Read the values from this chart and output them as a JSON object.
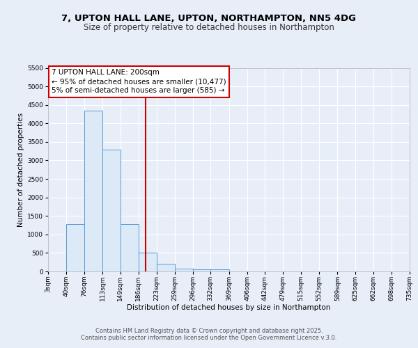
{
  "title": "7, UPTON HALL LANE, UPTON, NORTHAMPTON, NN5 4DG",
  "subtitle": "Size of property relative to detached houses in Northampton",
  "xlabel": "Distribution of detached houses by size in Northampton",
  "ylabel": "Number of detached properties",
  "bin_edges": [
    3,
    40,
    76,
    113,
    149,
    186,
    223,
    259,
    296,
    332,
    369,
    406,
    442,
    479,
    515,
    552,
    589,
    625,
    662,
    698,
    735
  ],
  "bar_heights": [
    0,
    1270,
    4350,
    3300,
    1280,
    510,
    210,
    80,
    55,
    55,
    0,
    0,
    0,
    0,
    0,
    0,
    0,
    0,
    0,
    0
  ],
  "bar_facecolor": "#dce9f7",
  "bar_edgecolor": "#5b9bd5",
  "vline_x": 200,
  "vline_color": "#cc0000",
  "ylim": [
    0,
    5500
  ],
  "yticks": [
    0,
    500,
    1000,
    1500,
    2000,
    2500,
    3000,
    3500,
    4000,
    4500,
    5000,
    5500
  ],
  "xtick_labels": [
    "3sqm",
    "40sqm",
    "76sqm",
    "113sqm",
    "149sqm",
    "186sqm",
    "223sqm",
    "259sqm",
    "296sqm",
    "332sqm",
    "369sqm",
    "406sqm",
    "442sqm",
    "479sqm",
    "515sqm",
    "552sqm",
    "589sqm",
    "625sqm",
    "662sqm",
    "698sqm",
    "735sqm"
  ],
  "legend_title": "7 UPTON HALL LANE: 200sqm",
  "legend_line1": "← 95% of detached houses are smaller (10,477)",
  "legend_line2": "5% of semi-detached houses are larger (585) →",
  "legend_box_color": "#cc0000",
  "footer_line1": "Contains HM Land Registry data © Crown copyright and database right 2025.",
  "footer_line2": "Contains public sector information licensed under the Open Government Licence v.3.0.",
  "bg_color": "#e8eef8",
  "plot_bg_color": "#e8eef8",
  "grid_color": "#ffffff",
  "title_fontsize": 9.5,
  "subtitle_fontsize": 8.5,
  "axis_label_fontsize": 7.5,
  "tick_fontsize": 6.5,
  "footer_fontsize": 6.0,
  "legend_fontsize": 7.5
}
